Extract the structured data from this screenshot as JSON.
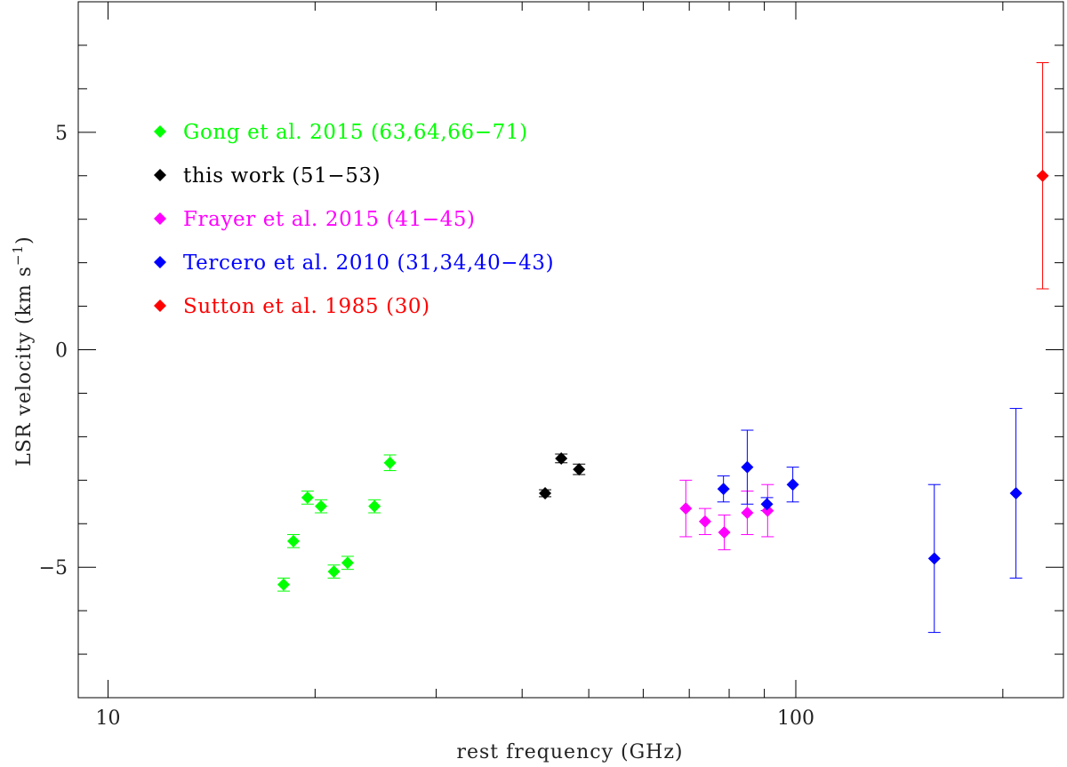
{
  "chart_data": {
    "type": "scatter",
    "title": "",
    "xlabel": "rest frequency (GHz)",
    "ylabel_main": "LSR velocity (km s",
    "ylabel_sup": "−1",
    "ylabel_close": ")",
    "xscale": "log",
    "xlim": [
      9.05,
      245
    ],
    "ylim": [
      -8,
      8
    ],
    "x_major_ticks": [
      10,
      100
    ],
    "x_tick_labels": [
      "10",
      "100"
    ],
    "y_major_ticks": [
      -5,
      0,
      5
    ],
    "y_tick_labels": [
      "−5",
      "0",
      "5"
    ],
    "grid": false,
    "legend_position": "top-left",
    "series": [
      {
        "name": "Gong et al. 2015 (63,64,66−71)",
        "color": "#00ff00",
        "points": [
          {
            "x": 18.0,
            "y": -5.4,
            "err": 0.15
          },
          {
            "x": 18.6,
            "y": -4.4,
            "err": 0.15
          },
          {
            "x": 19.5,
            "y": -3.4,
            "err": 0.15
          },
          {
            "x": 20.4,
            "y": -3.6,
            "err": 0.15
          },
          {
            "x": 21.3,
            "y": -5.1,
            "err": 0.15
          },
          {
            "x": 22.3,
            "y": -4.9,
            "err": 0.15
          },
          {
            "x": 24.4,
            "y": -3.6,
            "err": 0.15
          },
          {
            "x": 25.7,
            "y": -2.6,
            "err": 0.18
          }
        ]
      },
      {
        "name": "this work (51−53)",
        "color": "#000000",
        "points": [
          {
            "x": 43.2,
            "y": -3.3,
            "err": 0.08
          },
          {
            "x": 45.6,
            "y": -2.5,
            "err": 0.1
          },
          {
            "x": 48.4,
            "y": -2.75,
            "err": 0.12
          }
        ]
      },
      {
        "name": "Frayer et al. 2015 (41−45)",
        "color": "#ff00ff",
        "points": [
          {
            "x": 69.2,
            "y": -3.65,
            "err": 0.65
          },
          {
            "x": 73.8,
            "y": -3.95,
            "err": 0.3
          },
          {
            "x": 78.7,
            "y": -4.2,
            "err": 0.4
          },
          {
            "x": 85.0,
            "y": -3.75,
            "err": 0.5
          },
          {
            "x": 91.0,
            "y": -3.7,
            "err": 0.6
          }
        ]
      },
      {
        "name": "Tercero et al. 2010 (31,34,40−43)",
        "color": "#0000ff",
        "points": [
          {
            "x": 78.5,
            "y": -3.2,
            "err": 0.3
          },
          {
            "x": 85.0,
            "y": -2.7,
            "err": 0.85
          },
          {
            "x": 90.8,
            "y": -3.55,
            "err": 0.15
          },
          {
            "x": 99.0,
            "y": -3.1,
            "err": 0.4
          },
          {
            "x": 159.0,
            "y": -4.8,
            "err": 1.7
          },
          {
            "x": 209.0,
            "y": -3.3,
            "err": 1.95
          }
        ]
      },
      {
        "name": "Sutton et al. 1985 (30)",
        "color": "#ff0000",
        "points": [
          {
            "x": 228.5,
            "y": 4.0,
            "err": 2.6
          }
        ]
      }
    ]
  }
}
